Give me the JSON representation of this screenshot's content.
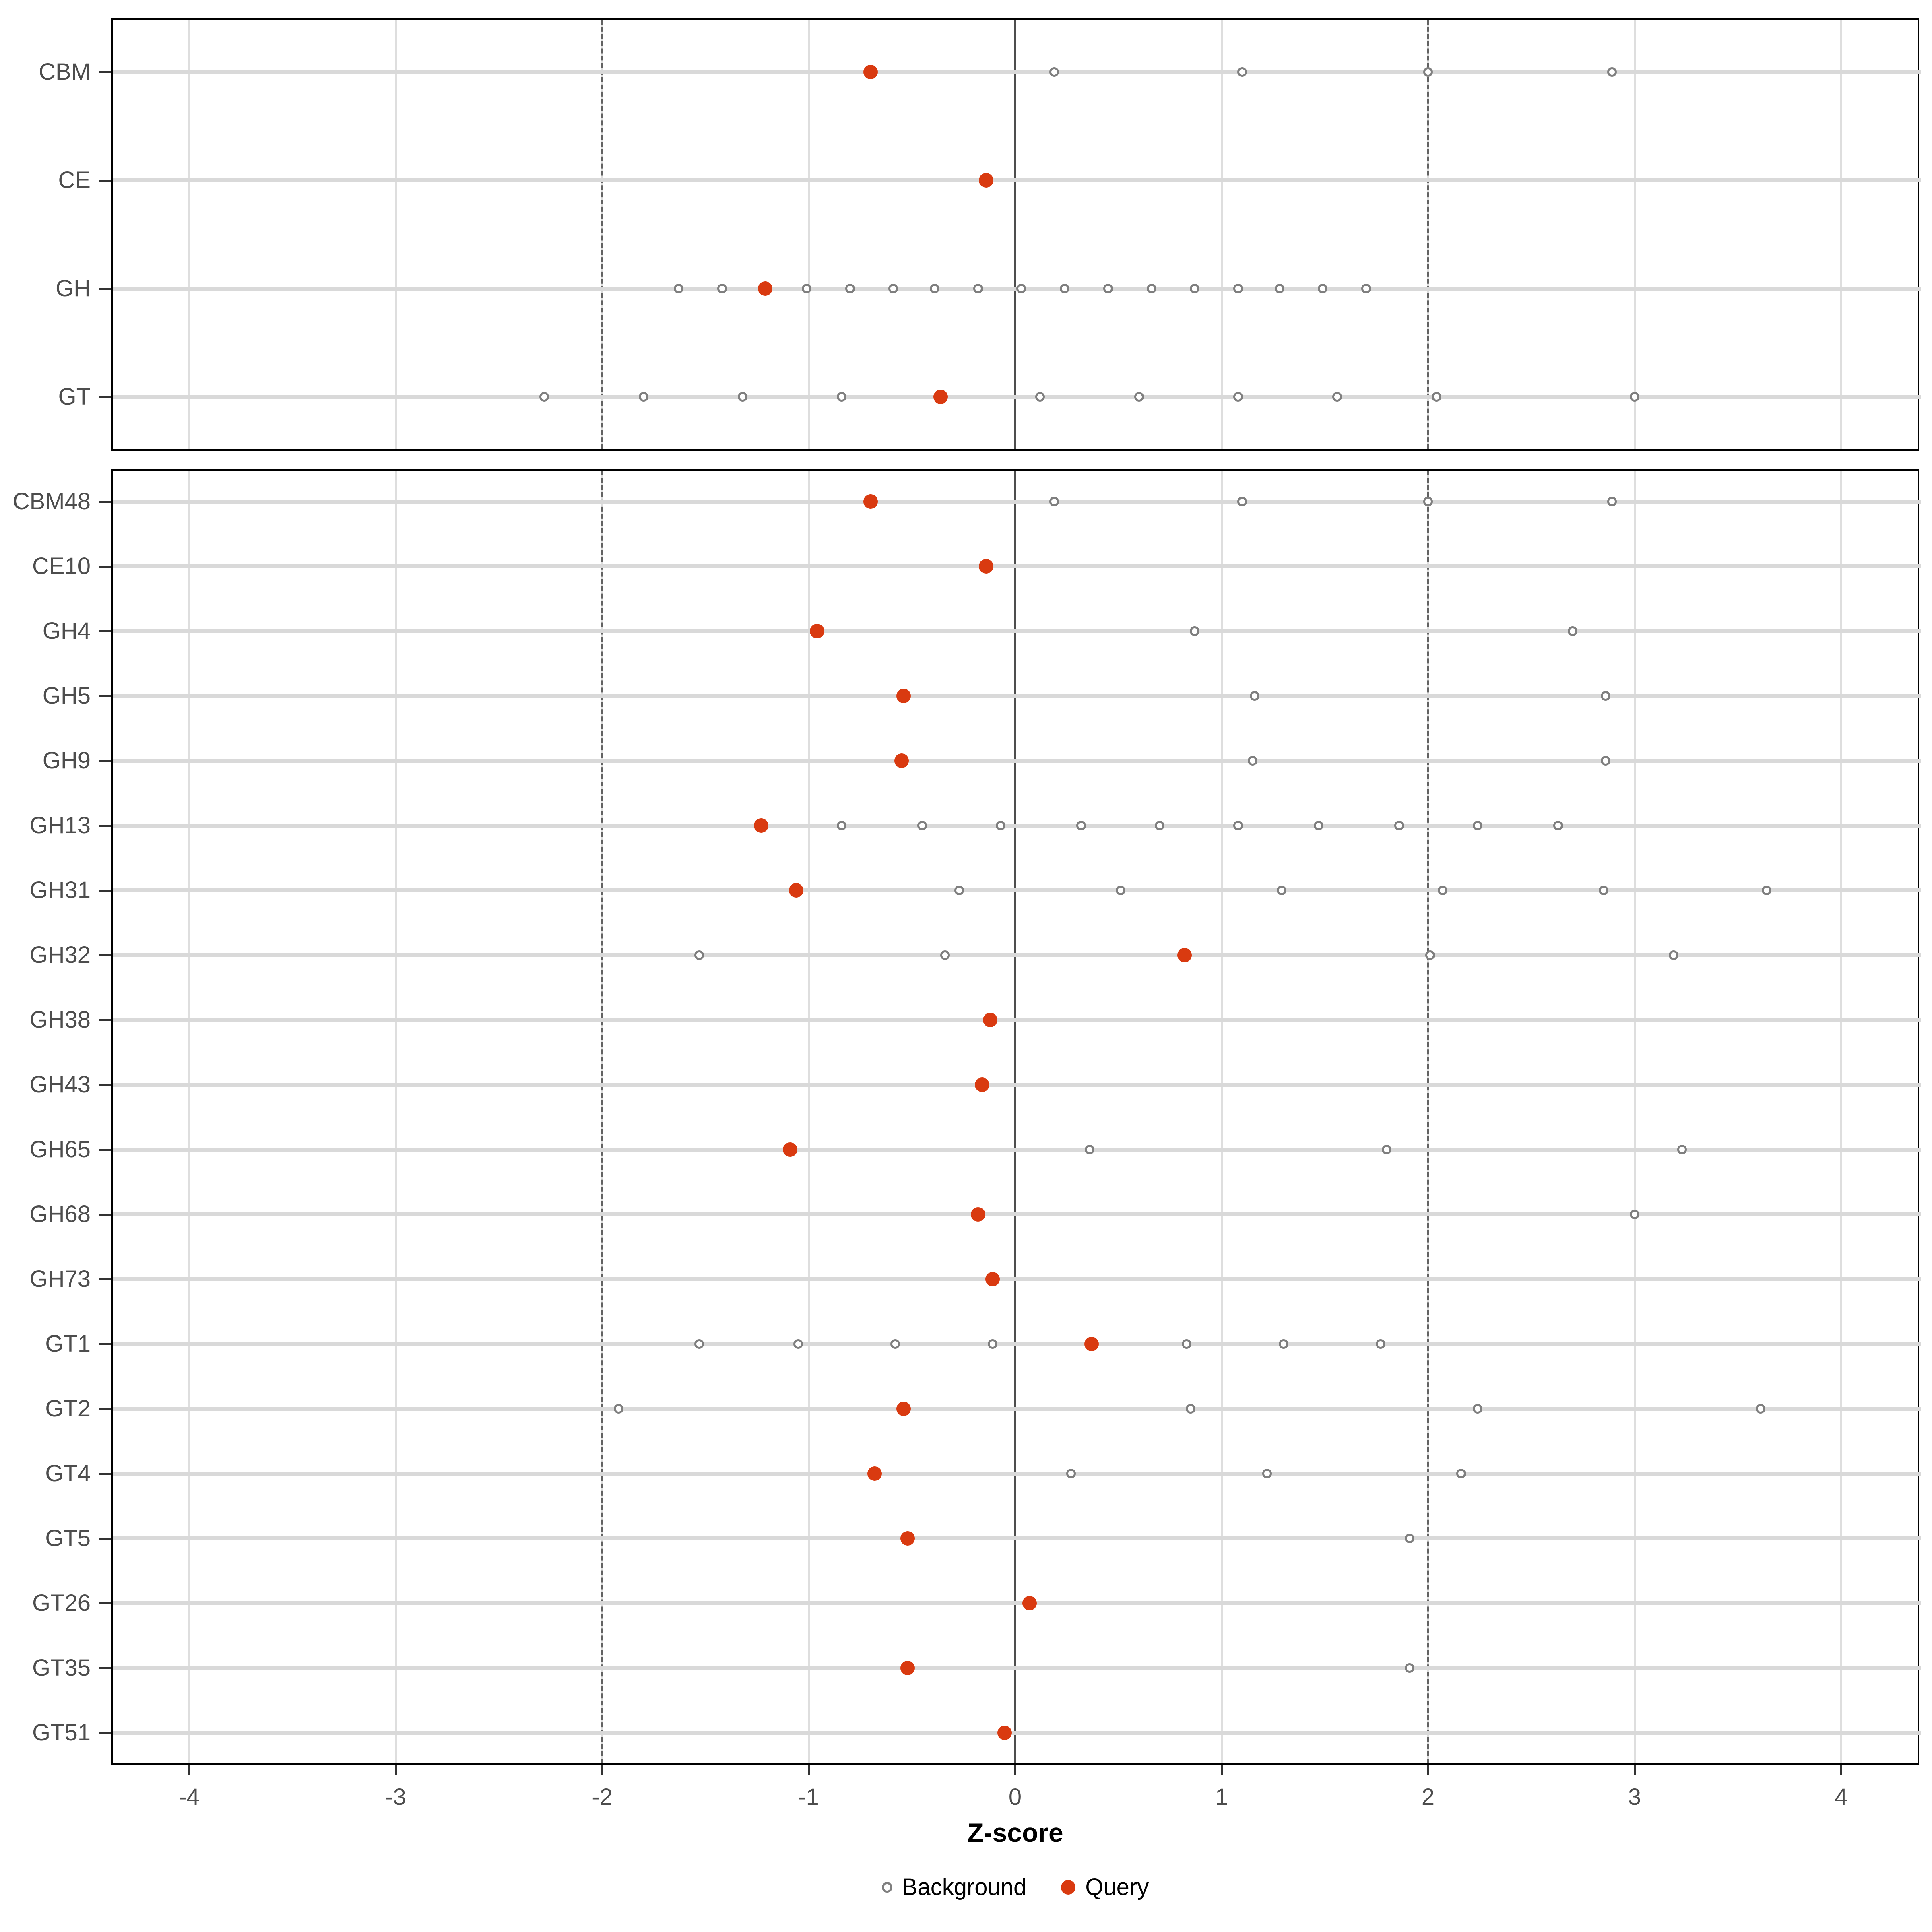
{
  "axis": {
    "title": "Z-score",
    "tick_labels": [
      "-4",
      "-3",
      "-2",
      "-1",
      "0",
      "1",
      "2",
      "3",
      "4"
    ]
  },
  "legend": {
    "background_label": "Background",
    "query_label": "Query"
  },
  "colors": {
    "query_dot": "#d93a10",
    "background_dot_stroke": "#7f7f7f",
    "row_gridline": "#d9d9d9",
    "vertical_gridline": "#dedede",
    "reference_line": "#4d4d4d",
    "panel_border": "#000000",
    "tick_label": "#4d4d4d"
  },
  "chart_data": {
    "type": "scatter",
    "xlabel": "Z-score",
    "xlim": [
      -4.38,
      4.38
    ],
    "x_ticks": [
      -4,
      -3,
      -2,
      -1,
      0,
      1,
      2,
      3,
      4
    ],
    "grid": "vertical-major and per-row horizontal",
    "reference_lines": {
      "solid": [
        0
      ],
      "dashed": [
        -2,
        2
      ]
    },
    "legend_position": "bottom-center",
    "series_legend": [
      {
        "name": "Background",
        "marker": "open-circle"
      },
      {
        "name": "Query",
        "marker": "filled-circle"
      }
    ],
    "panels": [
      {
        "name": "enzyme-classes",
        "rows": [
          {
            "label": "CBM",
            "query": -0.7,
            "background": [
              0.19,
              1.1,
              2.0,
              2.89
            ]
          },
          {
            "label": "CE",
            "query": -0.14,
            "background": []
          },
          {
            "label": "GH",
            "query": -1.21,
            "background": [
              -1.63,
              -1.42,
              -1.01,
              -0.8,
              -0.59,
              -0.39,
              -0.18,
              0.03,
              0.24,
              0.45,
              0.66,
              0.87,
              1.08,
              1.28,
              1.49,
              1.7
            ]
          },
          {
            "label": "GT",
            "query": -0.36,
            "background": [
              -2.28,
              -1.8,
              -1.32,
              -0.84,
              0.12,
              0.6,
              1.08,
              1.56,
              2.04,
              3.0
            ]
          }
        ]
      },
      {
        "name": "enzyme-families",
        "rows": [
          {
            "label": "CBM48",
            "query": -0.7,
            "background": [
              0.19,
              1.1,
              2.0,
              2.89
            ]
          },
          {
            "label": "CE10",
            "query": -0.14,
            "background": []
          },
          {
            "label": "GH4",
            "query": -0.96,
            "background": [
              0.87,
              2.7
            ]
          },
          {
            "label": "GH5",
            "query": -0.54,
            "background": [
              1.16,
              2.86
            ]
          },
          {
            "label": "GH9",
            "query": -0.55,
            "background": [
              1.15,
              2.86
            ]
          },
          {
            "label": "GH13",
            "query": -1.23,
            "background": [
              -0.84,
              -0.45,
              -0.07,
              0.32,
              0.7,
              1.08,
              1.47,
              1.86,
              2.24,
              2.63
            ]
          },
          {
            "label": "GH31",
            "query": -1.06,
            "background": [
              -0.27,
              0.51,
              1.29,
              2.07,
              2.85,
              3.64
            ]
          },
          {
            "label": "GH32",
            "query": 0.82,
            "background": [
              -1.53,
              -0.34,
              2.01,
              3.19
            ]
          },
          {
            "label": "GH38",
            "query": -0.12,
            "background": []
          },
          {
            "label": "GH43",
            "query": -0.16,
            "background": []
          },
          {
            "label": "GH65",
            "query": -1.09,
            "background": [
              0.36,
              1.8,
              3.23
            ]
          },
          {
            "label": "GH68",
            "query": -0.18,
            "background": [
              3.0
            ]
          },
          {
            "label": "GH73",
            "query": -0.11,
            "background": []
          },
          {
            "label": "GT1",
            "query": 0.37,
            "background": [
              -1.53,
              -1.05,
              -0.58,
              -0.11,
              0.83,
              1.3,
              1.77
            ]
          },
          {
            "label": "GT2",
            "query": -0.54,
            "background": [
              -1.92,
              0.85,
              2.24,
              3.61
            ]
          },
          {
            "label": "GT4",
            "query": -0.68,
            "background": [
              0.27,
              1.22,
              2.16
            ]
          },
          {
            "label": "GT5",
            "query": -0.52,
            "background": [
              1.91
            ]
          },
          {
            "label": "GT26",
            "query": 0.07,
            "background": []
          },
          {
            "label": "GT35",
            "query": -0.52,
            "background": [
              1.91
            ]
          },
          {
            "label": "GT51",
            "query": -0.05,
            "background": []
          }
        ]
      }
    ]
  }
}
